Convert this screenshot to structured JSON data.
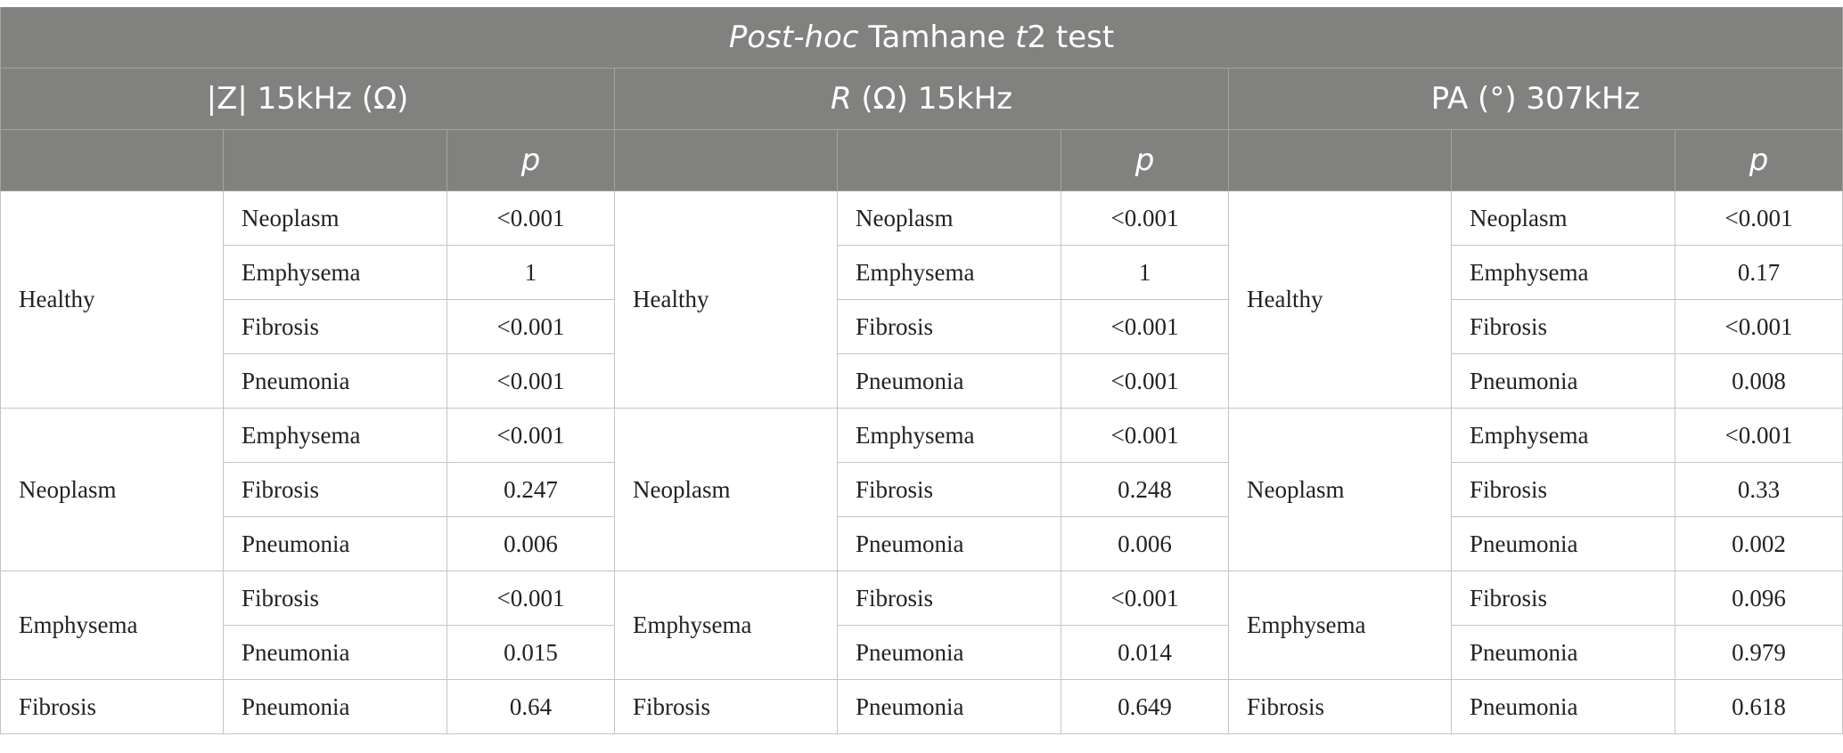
{
  "table": {
    "title_italic": "Post-hoc",
    "title_rest": " Tamhane ",
    "title_t": "t",
    "title_end": "2 test",
    "metrics": [
      {
        "pre": "|Z| 15kHz (Ω)",
        "italic": "",
        "post": ""
      },
      {
        "pre": "",
        "italic": "R",
        "post": " (Ω) 15kHz"
      },
      {
        "pre": "PA (°) 307kHz",
        "italic": "",
        "post": ""
      }
    ],
    "p_label": "p",
    "groups": [
      {
        "name": "Healthy",
        "comparisons": [
          {
            "vs": "Neoplasm",
            "p": [
              "<0.001",
              "<0.001",
              "<0.001"
            ]
          },
          {
            "vs": "Emphysema",
            "p": [
              "1",
              "1",
              "0.17"
            ]
          },
          {
            "vs": "Fibrosis",
            "p": [
              "<0.001",
              "<0.001",
              "<0.001"
            ]
          },
          {
            "vs": "Pneumonia",
            "p": [
              "<0.001",
              "<0.001",
              "0.008"
            ]
          }
        ]
      },
      {
        "name": "Neoplasm",
        "comparisons": [
          {
            "vs": "Emphysema",
            "p": [
              "<0.001",
              "<0.001",
              "<0.001"
            ]
          },
          {
            "vs": "Fibrosis",
            "p": [
              "0.247",
              "0.248",
              "0.33"
            ]
          },
          {
            "vs": "Pneumonia",
            "p": [
              "0.006",
              "0.006",
              "0.002"
            ]
          }
        ]
      },
      {
        "name": "Emphysema",
        "comparisons": [
          {
            "vs": "Fibrosis",
            "p": [
              "<0.001",
              "<0.001",
              "0.096"
            ]
          },
          {
            "vs": "Pneumonia",
            "p": [
              "0.015",
              "0.014",
              "0.979"
            ]
          }
        ]
      },
      {
        "name": "Fibrosis",
        "comparisons": [
          {
            "vs": "Pneumonia",
            "p": [
              "0.64",
              "0.649",
              "0.618"
            ]
          }
        ]
      }
    ]
  }
}
